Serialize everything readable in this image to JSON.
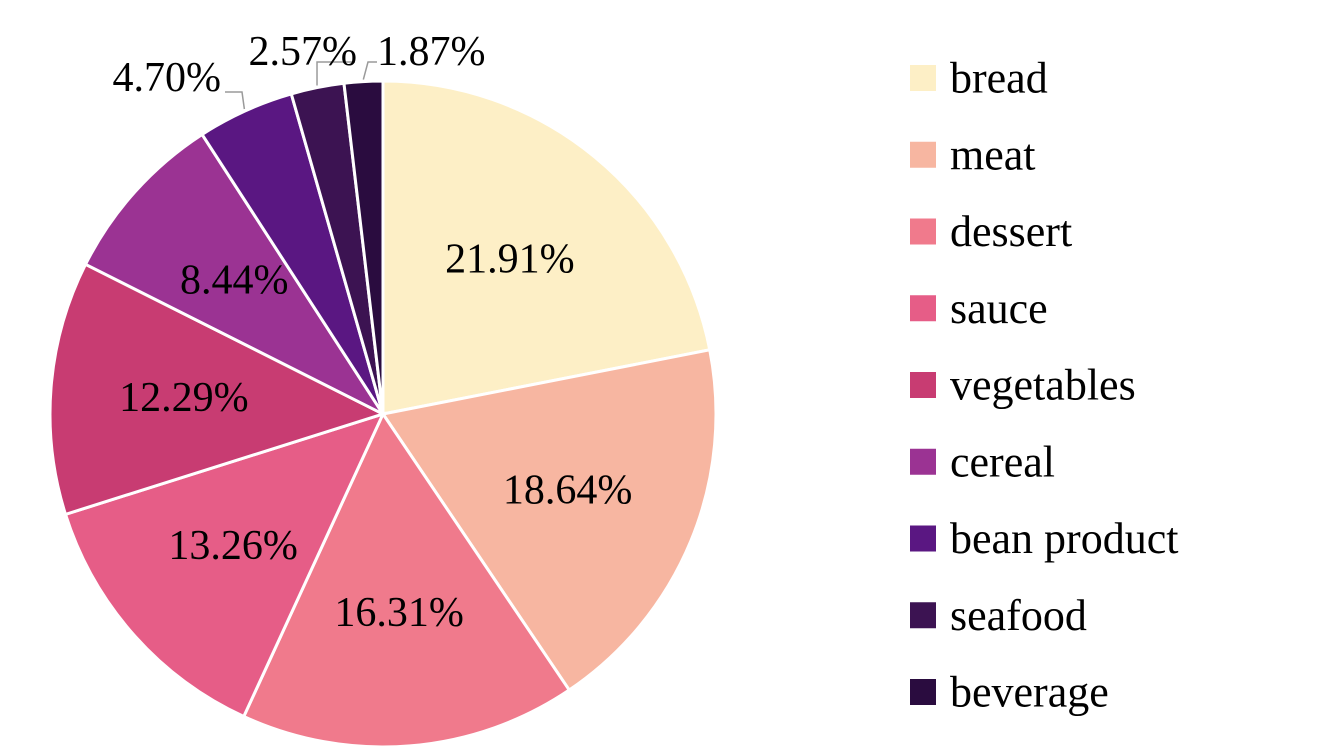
{
  "chart_data": {
    "type": "pie",
    "categories": [
      "bread",
      "meat",
      "dessert",
      "sauce",
      "vegetables",
      "cereal",
      "bean product",
      "seafood",
      "beverage"
    ],
    "values": [
      21.91,
      18.64,
      16.31,
      13.26,
      12.29,
      8.44,
      4.7,
      2.57,
      1.87
    ],
    "labels": [
      "21.91%",
      "18.64%",
      "16.31%",
      "13.26%",
      "12.29%",
      "8.44%",
      "4.70%",
      "2.57%",
      "1.87%"
    ],
    "colors": [
      "#fdefc6",
      "#f7b6a1",
      "#f07a8c",
      "#e65d87",
      "#c83c72",
      "#9b3393",
      "#5a1782",
      "#3c1352",
      "#2a0c3f"
    ],
    "title": "",
    "legend_position": "right",
    "start_angle": "12 o'clock",
    "direction": "clockwise"
  }
}
